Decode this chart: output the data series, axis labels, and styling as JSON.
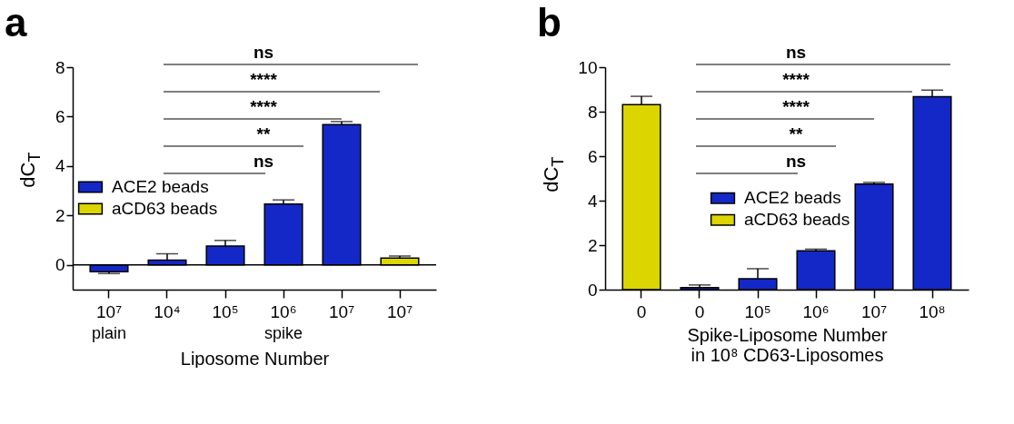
{
  "chart_data": [
    {
      "type": "bar",
      "title": "a",
      "xlabel": "Liposome Number",
      "ylabel": "dC$_{T}$",
      "categories": [
        "10⁷",
        "10⁴",
        "10⁵",
        "10⁶",
        "10⁷",
        "10⁷"
      ],
      "series": [
        {
          "name": "ACE2 beads",
          "color": "#1428c8",
          "values": [
            -0.27,
            0.19,
            0.76,
            2.46,
            5.68,
            null
          ],
          "errors": [
            [
              -0.35,
              -0.27
            ],
            [
              0.19,
              0.45
            ],
            [
              0.76,
              0.99
            ],
            [
              2.46,
              2.63
            ],
            [
              5.68,
              5.8
            ],
            null
          ]
        },
        {
          "name": "aCD63 beads",
          "color": "#dcd500",
          "values": [
            null,
            null,
            null,
            null,
            null,
            0.28
          ],
          "errors": [
            null,
            null,
            null,
            null,
            null,
            [
              0.28,
              0.36
            ]
          ]
        }
      ],
      "ylim": [
        -1,
        8
      ],
      "yticks": [
        0,
        2,
        4,
        6,
        8
      ],
      "grid": false,
      "legend": "left",
      "ref_lines": [
        {
          "axis": "y",
          "value": 0
        }
      ],
      "annotations": [
        "ns",
        "****",
        "****",
        "**",
        "ns",
        "plain",
        "spike"
      ]
    },
    {
      "type": "bar",
      "title": "b",
      "xlabel": "Spike-Liposome Number\nin 10⁸ CD63-Liposomes",
      "ylabel": "dC$_{T}$",
      "categories": [
        "0",
        "0",
        "10⁵",
        "10⁶",
        "10⁷",
        "10⁸"
      ],
      "series": [
        {
          "name": "ACE2 beads",
          "color": "#1428c8",
          "values": [
            null,
            0.09,
            0.49,
            1.74,
            4.75,
            8.67
          ],
          "errors": [
            null,
            [
              0.09,
              0.21
            ],
            [
              0.49,
              0.94
            ],
            [
              1.74,
              1.82
            ],
            [
              4.75,
              4.82
            ],
            [
              8.67,
              8.97
            ]
          ]
        },
        {
          "name": "aCD63 beads",
          "color": "#dcd500",
          "values": [
            8.32,
            null,
            null,
            null,
            null,
            null
          ],
          "errors": [
            [
              8.32,
              8.69
            ],
            null,
            null,
            null,
            null,
            null
          ]
        }
      ],
      "ylim": [
        0,
        10
      ],
      "yticks": [
        0,
        2,
        4,
        6,
        8,
        10
      ],
      "grid": false,
      "legend": "center",
      "annotations": [
        "ns",
        "****",
        "****",
        "**",
        "ns"
      ]
    }
  ]
}
